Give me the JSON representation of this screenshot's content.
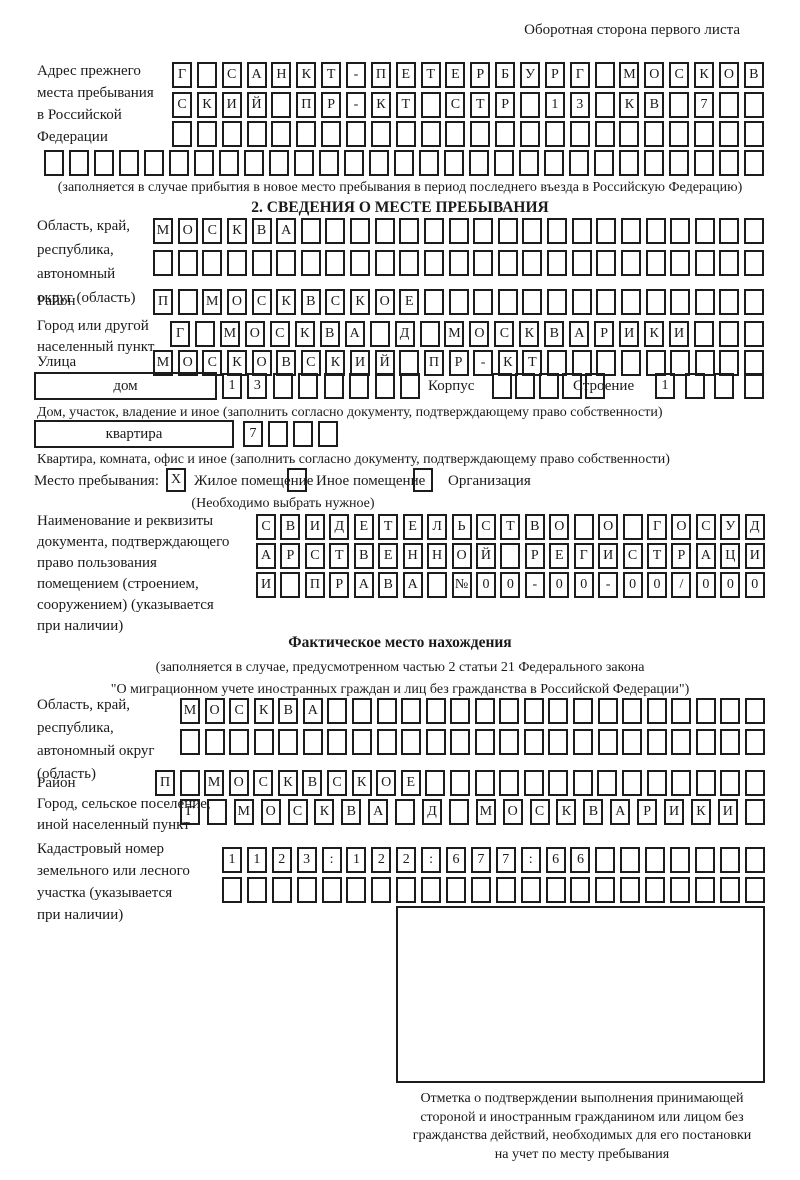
{
  "page_title": "Оборотная сторона первого листа",
  "colors": {
    "ink": "#1c1c1c",
    "background": "#ffffff"
  },
  "prev_address": {
    "label": "Адрес прежнего\nместа пребывания\nв Российской\nФедерации",
    "rows": [
      {
        "count": 24,
        "text": "Г САНКТ-ПЕТЕРБУРГ МОСКОВ"
      },
      {
        "count": 24,
        "text": "СКИЙ ПР-КТ СТР 13 КВ 7"
      },
      {
        "count": 24,
        "text": ""
      },
      {
        "count": 29,
        "text": ""
      }
    ],
    "note": "(заполняется в случае прибытия в новое место пребывания в период последнего въезда в Российскую Федерацию)"
  },
  "section2": {
    "header": "2. СВЕДЕНИЯ О МЕСТЕ ПРЕБЫВАНИЯ",
    "oblast": {
      "label": "Область, край,\nреспублика,\nавтономный\nокруг (область)",
      "rows": [
        {
          "count": 25,
          "text": "МОСКВА"
        },
        {
          "count": 25,
          "text": ""
        }
      ]
    },
    "raion": {
      "label": "Район",
      "row": {
        "count": 25,
        "text": "П МОСКВСКОЕ"
      }
    },
    "gorod": {
      "label": "Город или другой\nнаселенный пункт",
      "row": {
        "count": 24,
        "text": "Г МОСКВА Д МОСКВАРИКИ"
      }
    },
    "ulitsa": {
      "label": "Улица",
      "row": {
        "count": 25,
        "text": "МОСКОВСКИЙ ПР-КТ"
      }
    },
    "dom": {
      "box_label": "дом",
      "row": {
        "count": 8,
        "text": "13"
      },
      "korpus_label": "Корпус",
      "korpus_row": {
        "count": 5,
        "text": ""
      },
      "stroenie_label": "Строение",
      "stroenie_row": {
        "count": 4,
        "text": "1"
      }
    },
    "dom_note": "Дом, участок, владение и иное (заполнить согласно документу, подтверждающему право собственности)",
    "kvartira": {
      "box_label": "квартира",
      "row": {
        "count": 4,
        "text": "7"
      }
    },
    "kvartira_note": "Квартира, комната, офис и иное (заполнить согласно документу, подтверждающему право собственности)",
    "mesto": {
      "label": "Место пребывания:",
      "options": [
        {
          "label": "Жилое помещение",
          "mark": "X"
        },
        {
          "label": "Иное помещение",
          "mark": ""
        },
        {
          "label": "Организация",
          "mark": ""
        }
      ],
      "note": "(Необходимо выбрать нужное)"
    },
    "doc": {
      "label": "Наименование и реквизиты\nдокумента, подтверждающего\nправо пользования\nпомещением (строением,\nсооружением) (указывается\nпри наличии)",
      "rows": [
        {
          "count": 21,
          "text": "СВИДЕТЕЛЬСТВО О ГОСУД"
        },
        {
          "count": 21,
          "text": "АРСТВЕННОЙ РЕГИСТРАЦИ"
        },
        {
          "count": 21,
          "text": "И ПРАВА №00-00-00/000"
        }
      ]
    }
  },
  "fact": {
    "header": "Фактическое место нахождения",
    "note": "(заполняется в случае, предусмотренном частью 2 статьи 21 Федерального закона\n\"О миграционном учете иностранных граждан и лиц без гражданства в Российской Федерации\")",
    "oblast": {
      "label": "Область, край,\nреспублика,\nавтономный округ\n(область)",
      "rows": [
        {
          "count": 24,
          "text": "МОСКВА"
        },
        {
          "count": 24,
          "text": ""
        }
      ]
    },
    "raion": {
      "label": "Район",
      "row": {
        "count": 25,
        "text": "П МОСКВСКОЕ"
      }
    },
    "gorod": {
      "label": "Город, сельское поселение,\nиной населенный пункт",
      "row": {
        "count": 22,
        "text": "Г МОСКВА Д МОСКВАРИКИ"
      }
    },
    "kadastr": {
      "label": "Кадастровый номер\nземельного или лесного\nучастка (указывается\nпри наличии)",
      "rows": [
        {
          "count": 22,
          "text": "1123:122:677:66"
        },
        {
          "count": 22,
          "text": ""
        }
      ]
    },
    "mark_caption": "Отметка о подтверждении выполнения принимающей\nстороной и иностранным гражданином или лицом без\nгражданства действий, необходимых для его постановки\nна учет по месту пребывания"
  }
}
